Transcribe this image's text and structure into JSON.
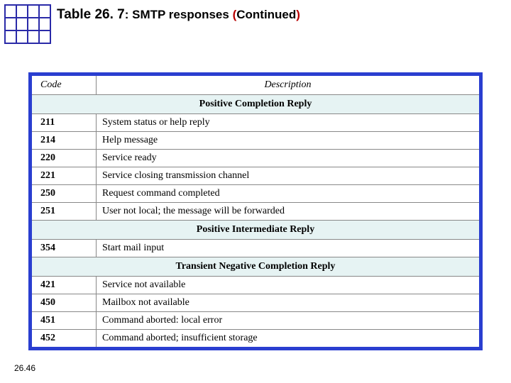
{
  "title": {
    "prefix": "Table 26. 7",
    "colon": ": ",
    "subject": "SMTP responses ",
    "paren_open": "(",
    "cont_word": "Continued",
    "paren_close": ")"
  },
  "headers": {
    "code": "Code",
    "description": "Description"
  },
  "sections": [
    {
      "heading": "Positive Completion Reply",
      "rows": [
        {
          "code": "211",
          "desc": "System status or help reply"
        },
        {
          "code": "214",
          "desc": "Help message"
        },
        {
          "code": "220",
          "desc": "Service ready"
        },
        {
          "code": "221",
          "desc": "Service closing transmission channel"
        },
        {
          "code": "250",
          "desc": "Request command completed"
        },
        {
          "code": "251",
          "desc": "User not local; the message will be forwarded"
        }
      ]
    },
    {
      "heading": "Positive Intermediate Reply",
      "rows": [
        {
          "code": "354",
          "desc": "Start mail input"
        }
      ]
    },
    {
      "heading": "Transient Negative Completion Reply",
      "rows": [
        {
          "code": "421",
          "desc": "Service not available"
        },
        {
          "code": "450",
          "desc": "Mailbox not available"
        },
        {
          "code": "451",
          "desc": "Command aborted: local error"
        },
        {
          "code": "452",
          "desc": "Command aborted; insufficient storage"
        }
      ]
    }
  ],
  "page_number": "26.46",
  "style": {
    "frame_border_color": "#2a3ed0",
    "section_bg": "#e6f3f3",
    "grid_color": "#888888",
    "text_color": "#000000",
    "paren_color": "#b80000",
    "logo_border": "#2a2aa8",
    "header_font_style": "italic",
    "code_font_weight": "bold",
    "base_font_size_pt": 11,
    "title_font_size_pt": 14
  }
}
